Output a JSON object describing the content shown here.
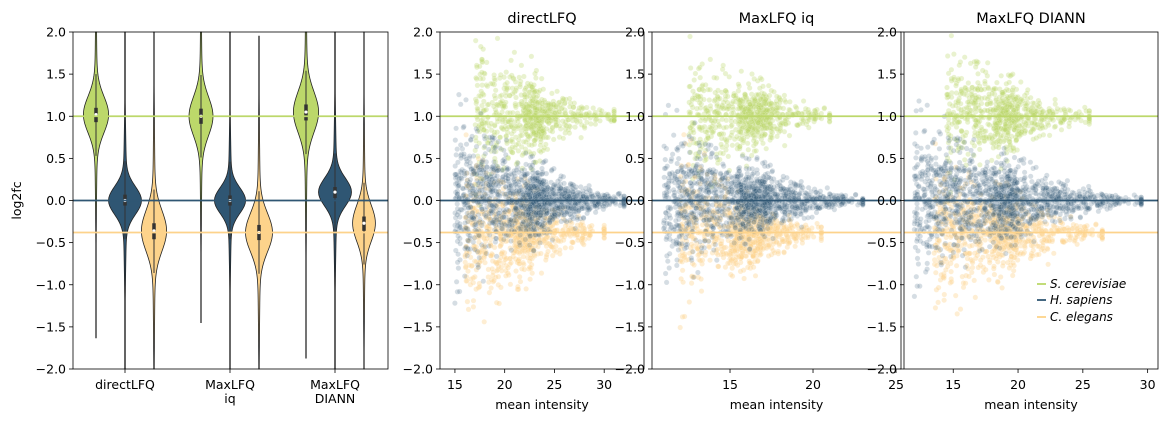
{
  "colors": {
    "s_cerevisiae": "#bcd86a",
    "h_sapiens": "#2f5673",
    "c_elegans": "#fdd38b"
  },
  "chart_data": [
    {
      "type": "violin",
      "ylabel": "log2fc",
      "ylim": [
        -2.0,
        2.0
      ],
      "yticks": [
        "2.0",
        "1.5",
        "1.0",
        "0.5",
        "0.0",
        "-0.5",
        "-1.0",
        "-1.5",
        "-2.0"
      ],
      "categories": [
        [
          "directLFQ"
        ],
        [
          "MaxLFQ",
          "iq"
        ],
        [
          "MaxLFQ",
          "DIANN"
        ]
      ],
      "reference_lines": [
        1.0,
        0.0,
        -0.38
      ],
      "violins": [
        {
          "group": 0,
          "species": "s_cerevisiae",
          "median": 1.02,
          "q1": 0.93,
          "q3": 1.1,
          "min": -1.63,
          "max": 2.0,
          "width": 0.42
        },
        {
          "group": 0,
          "species": "h_sapiens",
          "median": 0.0,
          "q1": -0.06,
          "q3": 0.07,
          "min": -2.0,
          "max": 2.0,
          "width": 0.55
        },
        {
          "group": 0,
          "species": "c_elegans",
          "median": -0.36,
          "q1": -0.46,
          "q3": -0.27,
          "min": -2.0,
          "max": 2.0,
          "width": 0.42
        },
        {
          "group": 1,
          "species": "s_cerevisiae",
          "median": 1.0,
          "q1": 0.91,
          "q3": 1.09,
          "min": -1.45,
          "max": 2.0,
          "width": 0.4
        },
        {
          "group": 1,
          "species": "h_sapiens",
          "median": 0.0,
          "q1": -0.06,
          "q3": 0.06,
          "min": -2.0,
          "max": 2.0,
          "width": 0.52
        },
        {
          "group": 1,
          "species": "c_elegans",
          "median": -0.38,
          "q1": -0.47,
          "q3": -0.29,
          "min": -2.0,
          "max": 1.95,
          "width": 0.45
        },
        {
          "group": 2,
          "species": "s_cerevisiae",
          "median": 1.05,
          "q1": 0.95,
          "q3": 1.14,
          "min": -1.87,
          "max": 2.0,
          "width": 0.42
        },
        {
          "group": 2,
          "species": "h_sapiens",
          "median": 0.1,
          "q1": 0.03,
          "q3": 0.16,
          "min": -2.0,
          "max": 2.0,
          "width": 0.55
        },
        {
          "group": 2,
          "species": "c_elegans",
          "median": -0.27,
          "q1": -0.36,
          "q3": -0.19,
          "min": -2.0,
          "max": 2.0,
          "width": 0.38
        }
      ]
    },
    {
      "type": "scatter",
      "title": "directLFQ",
      "xlabel": "mean intensity",
      "xlim": [
        13.5,
        34
      ],
      "ylim": [
        -2.0,
        2.0
      ],
      "xticks": [
        15,
        20,
        25,
        30
      ],
      "yticks": [
        "2.0",
        "1.5",
        "1.0",
        "0.5",
        "0.0",
        "-0.5",
        "-1.0",
        "-1.5",
        "-2.0"
      ],
      "reference_lines": [
        1.0,
        0.0,
        -0.38
      ],
      "species_clouds": [
        {
          "species": "s_cerevisiae",
          "center_y": 1.0,
          "x_min": 17,
          "x_max": 31,
          "x_peak": 22,
          "spread_low_x": 0.9,
          "spread_high_x": 0.1
        },
        {
          "species": "h_sapiens",
          "center_y": 0.0,
          "x_min": 15,
          "x_max": 32,
          "x_peak": 22,
          "spread_low_x": 1.0,
          "spread_high_x": 0.08
        },
        {
          "species": "c_elegans",
          "center_y": -0.38,
          "x_min": 16,
          "x_max": 30,
          "x_peak": 21,
          "spread_low_x": 1.0,
          "spread_high_x": 0.1
        }
      ]
    },
    {
      "type": "scatter",
      "title": "MaxLFQ iq",
      "xlabel": "mean intensity",
      "xlim": [
        10.3,
        25.3
      ],
      "ylim": [
        -2.0,
        2.0
      ],
      "xticks": [
        15,
        20,
        25
      ],
      "yticks": [
        "2.0",
        "1.5",
        "1.0",
        "0.5",
        "0.0",
        "-0.5",
        "-1.0",
        "-1.5",
        "-2.0"
      ],
      "reference_lines": [
        1.0,
        0.0,
        -0.38
      ],
      "species_clouds": [
        {
          "species": "s_cerevisiae",
          "center_y": 1.0,
          "x_min": 12.5,
          "x_max": 21,
          "x_peak": 15.5,
          "spread_low_x": 0.8,
          "spread_high_x": 0.1
        },
        {
          "species": "h_sapiens",
          "center_y": 0.0,
          "x_min": 11,
          "x_max": 23,
          "x_peak": 15.5,
          "spread_low_x": 0.9,
          "spread_high_x": 0.07
        },
        {
          "species": "c_elegans",
          "center_y": -0.38,
          "x_min": 12,
          "x_max": 20.5,
          "x_peak": 15,
          "spread_low_x": 0.9,
          "spread_high_x": 0.1
        }
      ]
    },
    {
      "type": "scatter",
      "title": "MaxLFQ DIANN",
      "xlabel": "mean intensity",
      "xlim": [
        11.2,
        30.8
      ],
      "ylim": [
        -2.0,
        2.0
      ],
      "xticks": [
        15,
        20,
        25,
        30
      ],
      "yticks": [
        "2.0",
        "1.5",
        "1.0",
        "0.5",
        "0.0",
        "-0.5",
        "-1.0",
        "-1.5",
        "-2.0"
      ],
      "reference_lines": [
        1.0,
        0.0,
        -0.38
      ],
      "species_clouds": [
        {
          "species": "s_cerevisiae",
          "center_y": 1.0,
          "x_min": 14.5,
          "x_max": 25.5,
          "x_peak": 18,
          "spread_low_x": 0.8,
          "spread_high_x": 0.1
        },
        {
          "species": "h_sapiens",
          "center_y": 0.0,
          "x_min": 12,
          "x_max": 29.5,
          "x_peak": 18,
          "spread_low_x": 0.95,
          "spread_high_x": 0.06
        },
        {
          "species": "c_elegans",
          "center_y": -0.38,
          "x_min": 13.5,
          "x_max": 26.5,
          "x_peak": 18,
          "spread_low_x": 0.9,
          "spread_high_x": 0.1
        }
      ],
      "legend": {
        "placement": "lower-right",
        "entries": [
          {
            "species": "s_cerevisiae",
            "label": "S. cerevisiae"
          },
          {
            "species": "h_sapiens",
            "label": "H. sapiens"
          },
          {
            "species": "c_elegans",
            "label": "C. elegans"
          }
        ]
      }
    }
  ]
}
